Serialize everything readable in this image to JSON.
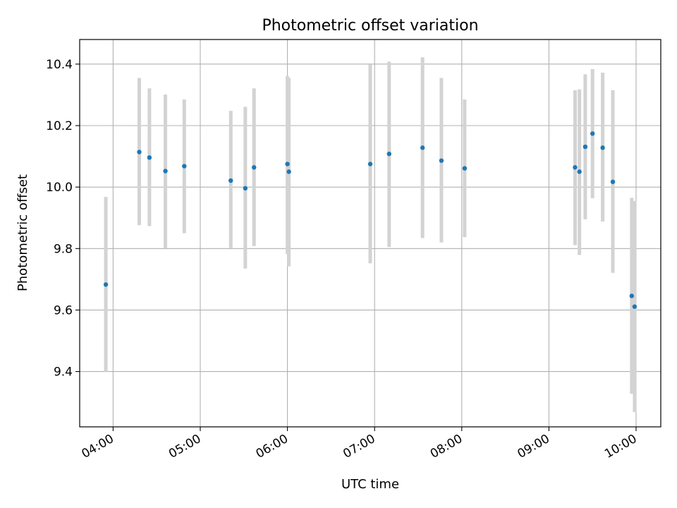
{
  "colors": {
    "points": "#1f77b4",
    "error_bars": "#d3d3d3",
    "grid": "#b0b0b0",
    "axes": "#000000"
  },
  "chart_data": {
    "type": "scatter",
    "title": "Photometric offset variation",
    "xlabel": "UTC time",
    "ylabel": "Photometric offset",
    "x_format": "HH:MM",
    "xlim": [
      "03:37",
      "10:17"
    ],
    "ylim": [
      9.22,
      10.48
    ],
    "xticks": [
      "04:00",
      "05:00",
      "06:00",
      "07:00",
      "08:00",
      "09:00",
      "10:00"
    ],
    "yticks": [
      "9.4",
      "9.6",
      "9.8",
      "10.0",
      "10.2",
      "10.4"
    ],
    "grid": true,
    "legend": "none",
    "series": [
      {
        "marker": "point",
        "error_bars": "vertical",
        "points": [
          {
            "x": "03:55",
            "y": 9.683,
            "err_low": 9.4,
            "err_high": 9.968
          },
          {
            "x": "04:18",
            "y": 10.114,
            "err_low": 9.876,
            "err_high": 10.355
          },
          {
            "x": "04:25",
            "y": 10.096,
            "err_low": 9.873,
            "err_high": 10.321
          },
          {
            "x": "04:36",
            "y": 10.052,
            "err_low": 9.801,
            "err_high": 10.301
          },
          {
            "x": "04:49",
            "y": 10.068,
            "err_low": 9.85,
            "err_high": 10.285
          },
          {
            "x": "05:21",
            "y": 10.021,
            "err_low": 9.801,
            "err_high": 10.248
          },
          {
            "x": "05:31",
            "y": 9.996,
            "err_low": 9.735,
            "err_high": 10.261
          },
          {
            "x": "05:37",
            "y": 10.064,
            "err_low": 9.808,
            "err_high": 10.321
          },
          {
            "x": "06:00",
            "y": 10.075,
            "err_low": 9.782,
            "err_high": 10.361
          },
          {
            "x": "06:01",
            "y": 10.05,
            "err_low": 9.742,
            "err_high": 10.355
          },
          {
            "x": "06:57",
            "y": 10.075,
            "err_low": 9.752,
            "err_high": 10.399
          },
          {
            "x": "07:10",
            "y": 10.108,
            "err_low": 9.805,
            "err_high": 10.408
          },
          {
            "x": "07:33",
            "y": 10.128,
            "err_low": 9.834,
            "err_high": 10.422
          },
          {
            "x": "07:46",
            "y": 10.086,
            "err_low": 9.82,
            "err_high": 10.355
          },
          {
            "x": "08:02",
            "y": 10.061,
            "err_low": 9.837,
            "err_high": 10.285
          },
          {
            "x": "09:18",
            "y": 10.064,
            "err_low": 9.811,
            "err_high": 10.315
          },
          {
            "x": "09:21",
            "y": 10.05,
            "err_low": 9.779,
            "err_high": 10.318
          },
          {
            "x": "09:25",
            "y": 10.131,
            "err_low": 9.895,
            "err_high": 10.367
          },
          {
            "x": "09:30",
            "y": 10.174,
            "err_low": 9.964,
            "err_high": 10.384
          },
          {
            "x": "09:37",
            "y": 10.128,
            "err_low": 9.888,
            "err_high": 10.372
          },
          {
            "x": "09:44",
            "y": 10.017,
            "err_low": 9.721,
            "err_high": 10.315
          },
          {
            "x": "09:57",
            "y": 9.646,
            "err_low": 9.328,
            "err_high": 9.965
          },
          {
            "x": "09:59",
            "y": 9.611,
            "err_low": 9.268,
            "err_high": 9.955
          }
        ]
      }
    ]
  }
}
